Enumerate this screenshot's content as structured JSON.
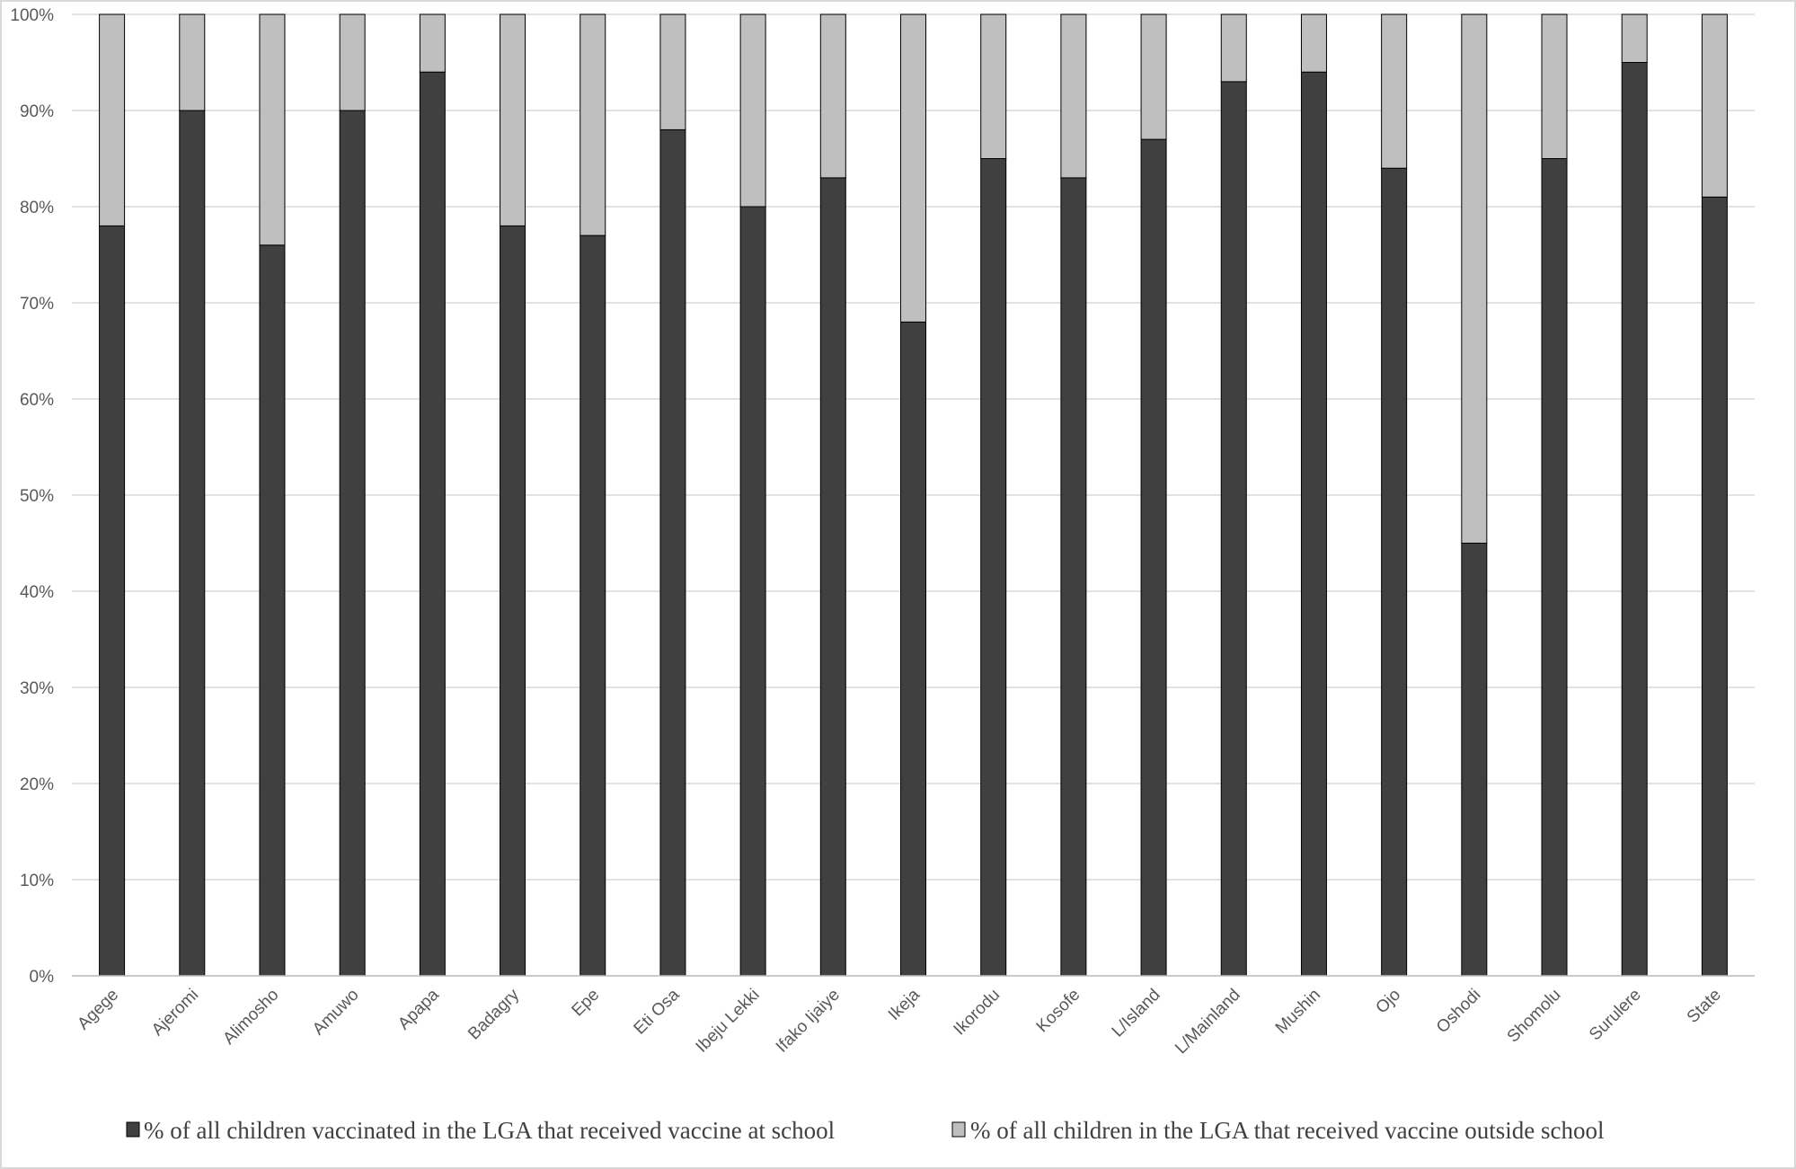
{
  "chart_data": {
    "type": "bar",
    "stacked": true,
    "percent_stacked": true,
    "title": "",
    "xlabel": "",
    "ylabel": "",
    "ylim": [
      0,
      100
    ],
    "yticks": [
      "0%",
      "10%",
      "20%",
      "30%",
      "40%",
      "50%",
      "60%",
      "70%",
      "80%",
      "90%",
      "100%"
    ],
    "grid": true,
    "legend_position": "bottom",
    "categories": [
      "Agege",
      "Ajeromi",
      "Alimosho",
      "Amuwo",
      "Apapa",
      "Badagry",
      "Epe",
      "Eti Osa",
      "Ibeju Lekki",
      "Ifako Ijaiye",
      "Ikeja",
      "Ikorodu",
      "Kosofe",
      "L/Island",
      "L/Mainland",
      "Mushin",
      "Ojo",
      "Oshodi",
      "Shomolu",
      "Surulere",
      "State"
    ],
    "series": [
      {
        "name": "% of all children vaccinated in the LGA that received vaccine at school",
        "color": "#404040",
        "values": [
          78,
          90,
          76,
          90,
          94,
          78,
          77,
          88,
          80,
          83,
          68,
          85,
          83,
          87,
          93,
          94,
          84,
          45,
          85,
          95,
          81
        ]
      },
      {
        "name": "% of all children in the LGA that received vaccine outside school",
        "color": "#bfbfbf",
        "values": [
          22,
          10,
          24,
          10,
          6,
          22,
          23,
          12,
          20,
          17,
          32,
          15,
          17,
          13,
          7,
          6,
          16,
          55,
          15,
          5,
          19
        ]
      }
    ]
  }
}
